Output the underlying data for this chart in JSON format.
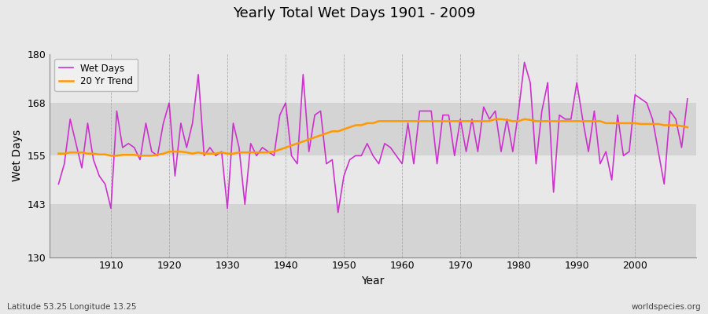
{
  "title": "Yearly Total Wet Days 1901 - 2009",
  "xlabel": "Year",
  "ylabel": "Wet Days",
  "bottom_left_label": "Latitude 53.25 Longitude 13.25",
  "bottom_right_label": "worldspecies.org",
  "ylim": [
    130,
    180
  ],
  "yticks": [
    130,
    143,
    155,
    168,
    180
  ],
  "line_color": "#cc33cc",
  "trend_color": "#ff9900",
  "fig_bg_color": "#e8e8e8",
  "plot_bg_color": "#e0e0e0",
  "band_light": "#e8e8e8",
  "band_dark": "#d4d4d4",
  "years": [
    1901,
    1902,
    1903,
    1904,
    1905,
    1906,
    1907,
    1908,
    1909,
    1910,
    1911,
    1912,
    1913,
    1914,
    1915,
    1916,
    1917,
    1918,
    1919,
    1920,
    1921,
    1922,
    1923,
    1924,
    1925,
    1926,
    1927,
    1928,
    1929,
    1930,
    1931,
    1932,
    1933,
    1934,
    1935,
    1936,
    1937,
    1938,
    1939,
    1940,
    1941,
    1942,
    1943,
    1944,
    1945,
    1946,
    1947,
    1948,
    1949,
    1950,
    1951,
    1952,
    1953,
    1954,
    1955,
    1956,
    1957,
    1958,
    1959,
    1960,
    1961,
    1962,
    1963,
    1964,
    1965,
    1966,
    1967,
    1968,
    1969,
    1970,
    1971,
    1972,
    1973,
    1974,
    1975,
    1976,
    1977,
    1978,
    1979,
    1980,
    1981,
    1982,
    1983,
    1984,
    1985,
    1986,
    1987,
    1988,
    1989,
    1990,
    1991,
    1992,
    1993,
    1994,
    1995,
    1996,
    1997,
    1998,
    1999,
    2000,
    2001,
    2002,
    2003,
    2004,
    2005,
    2006,
    2007,
    2008,
    2009
  ],
  "wet_days": [
    148,
    153,
    164,
    158,
    152,
    163,
    154,
    150,
    148,
    142,
    166,
    157,
    158,
    157,
    154,
    163,
    156,
    155,
    163,
    168,
    150,
    163,
    157,
    163,
    175,
    155,
    157,
    155,
    156,
    142,
    163,
    157,
    143,
    158,
    155,
    157,
    156,
    155,
    165,
    168,
    155,
    153,
    175,
    156,
    165,
    166,
    153,
    154,
    141,
    150,
    154,
    155,
    155,
    158,
    155,
    153,
    158,
    157,
    155,
    153,
    163,
    153,
    166,
    166,
    166,
    153,
    165,
    165,
    155,
    164,
    156,
    164,
    156,
    167,
    164,
    166,
    156,
    164,
    156,
    166,
    178,
    173,
    153,
    166,
    173,
    146,
    165,
    164,
    164,
    173,
    164,
    156,
    166,
    153,
    156,
    149,
    165,
    155,
    156,
    170,
    169,
    168,
    164,
    156,
    148,
    166,
    164,
    157,
    169
  ],
  "trend_values": [
    155.5,
    155.5,
    155.8,
    155.8,
    155.8,
    155.5,
    155.5,
    155.3,
    155.3,
    155.0,
    155.0,
    155.2,
    155.2,
    155.2,
    155.0,
    155.0,
    155.0,
    155.2,
    155.5,
    156.0,
    156.0,
    156.0,
    155.8,
    155.5,
    155.8,
    155.5,
    155.5,
    155.5,
    155.8,
    155.5,
    155.5,
    155.8,
    155.8,
    155.8,
    155.8,
    155.8,
    155.8,
    156.0,
    156.5,
    157.0,
    157.5,
    158.0,
    158.5,
    159.0,
    159.5,
    160.0,
    160.5,
    161.0,
    161.0,
    161.5,
    162.0,
    162.5,
    162.5,
    163.0,
    163.0,
    163.5,
    163.5,
    163.5,
    163.5,
    163.5,
    163.5,
    163.5,
    163.5,
    163.5,
    163.5,
    163.5,
    163.5,
    163.5,
    163.5,
    163.5,
    163.5,
    163.5,
    163.5,
    163.5,
    163.5,
    164.0,
    164.0,
    163.8,
    163.5,
    163.5,
    164.0,
    163.8,
    163.5,
    163.5,
    163.5,
    163.5,
    163.5,
    163.5,
    163.5,
    163.5,
    163.5,
    163.5,
    163.5,
    163.5,
    163.0,
    163.0,
    163.0,
    163.0,
    163.0,
    163.0,
    162.8,
    162.8,
    162.8,
    162.8,
    162.5,
    162.5,
    162.5,
    162.3,
    162.0
  ]
}
